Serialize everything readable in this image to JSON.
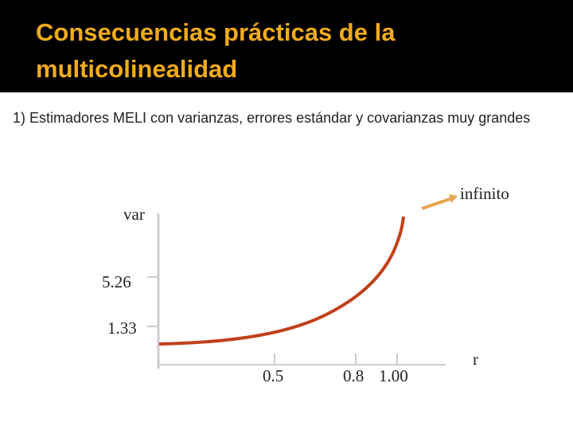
{
  "header": {
    "title": "Consecuencias prácticas de la multicolinealidad"
  },
  "body": {
    "paragraph": "1) Estimadores MELI con varianzas, errores estándar y covarianzas muy grandes"
  },
  "figure": {
    "y_label": "var",
    "y_ticks": [
      "5.26",
      "1.33"
    ],
    "x_ticks": [
      "0.5",
      "0.8",
      "1.00"
    ],
    "x_label": "r",
    "annotation": "infinito"
  }
}
